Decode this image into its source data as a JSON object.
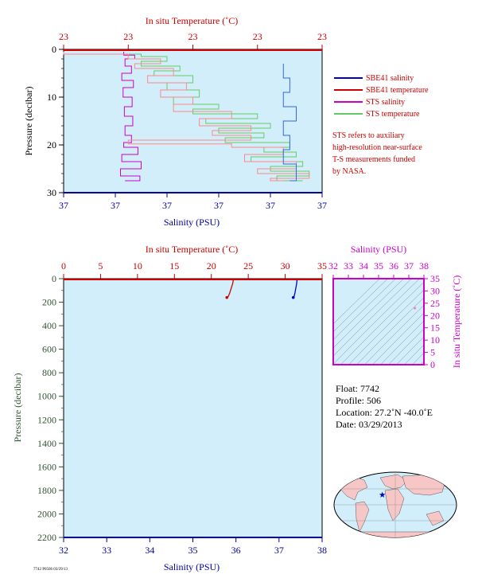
{
  "chart_data": [
    {
      "type": "line",
      "title": "",
      "top_axis": {
        "label": "In situ Temperature (˚C)",
        "tick_labels": [
          "23",
          "23",
          "23",
          "23",
          "23"
        ],
        "range": [
          0,
          4
        ]
      },
      "bottom_axis": {
        "label": "Salinity (PSU)",
        "tick_labels": [
          "37",
          "37",
          "37",
          "37",
          "37",
          "37"
        ],
        "range": [
          0,
          5
        ]
      },
      "ylabel": "Pressure (decibar)",
      "y_tick_labels": [
        "0",
        "10",
        "20",
        "30"
      ],
      "ylim": [
        30,
        0
      ],
      "legend": {
        "placement": "right",
        "entries": [
          {
            "name": "SBE41 salinity",
            "color": "#0000cc"
          },
          {
            "name": "SBE41 temperature",
            "color": "#cc0000"
          },
          {
            "name": "STS salinity",
            "color": "#cc00cc"
          },
          {
            "name": "STS temperature",
            "color": "#66cc66"
          }
        ]
      },
      "note": [
        "STS refers to auxiliary",
        "high-resolution near-surface",
        "T-S measurements funded",
        "by NASA."
      ],
      "series": [
        {
          "name": "STS salinity",
          "color": "#cc00cc",
          "points": [
            [
              0.93,
              0.5
            ],
            [
              1.1,
              1.2
            ],
            [
              0.95,
              2.0
            ],
            [
              1.05,
              3.5
            ],
            [
              0.9,
              5
            ],
            [
              1.08,
              6.5
            ],
            [
              0.92,
              8
            ],
            [
              1.06,
              10
            ],
            [
              0.94,
              12
            ],
            [
              1.07,
              14
            ],
            [
              0.95,
              16
            ],
            [
              1.05,
              18
            ],
            [
              0.93,
              19.5
            ],
            [
              1.15,
              20.5
            ],
            [
              0.9,
              22
            ],
            [
              1.2,
              23.5
            ],
            [
              0.88,
              25
            ],
            [
              1.18,
              26.5
            ],
            [
              0.95,
              27.5
            ]
          ]
        },
        {
          "name": "STS temperature",
          "color": "#66cc66",
          "points": [
            [
              0.0,
              0.5
            ],
            [
              1.2,
              1.0
            ],
            [
              1.6,
              1.5
            ],
            [
              1.2,
              2.5
            ],
            [
              1.8,
              3.5
            ],
            [
              1.4,
              4.5
            ],
            [
              2.0,
              5.5
            ],
            [
              1.6,
              7.0
            ],
            [
              2.1,
              8.5
            ],
            [
              1.7,
              10.0
            ],
            [
              2.4,
              11.5
            ],
            [
              2.0,
              12.5
            ],
            [
              3.0,
              13.5
            ],
            [
              2.2,
              14.5
            ],
            [
              3.2,
              15.5
            ],
            [
              2.4,
              16.5
            ],
            [
              3.1,
              17.5
            ],
            [
              2.5,
              18.5
            ],
            [
              3.5,
              19.5
            ],
            [
              3.1,
              20.5
            ],
            [
              3.6,
              21.5
            ],
            [
              2.9,
              22.5
            ],
            [
              3.7,
              23.5
            ],
            [
              3.2,
              24.5
            ],
            [
              3.8,
              25.5
            ],
            [
              3.3,
              26.5
            ],
            [
              3.7,
              27.5
            ]
          ]
        },
        {
          "name": "SBE41 temperature",
          "color": "#ff8888",
          "points": [
            [
              0.0,
              0.5
            ],
            [
              1.0,
              1.0
            ],
            [
              1.5,
              2.0
            ],
            [
              1.1,
              3.0
            ],
            [
              1.7,
              4.0
            ],
            [
              1.3,
              5.5
            ],
            [
              1.9,
              7.0
            ],
            [
              1.5,
              8.5
            ],
            [
              2.0,
              10.0
            ],
            [
              1.7,
              11.5
            ],
            [
              2.6,
              13.0
            ],
            [
              2.1,
              14.5
            ],
            [
              2.9,
              16.0
            ],
            [
              2.3,
              17.0
            ],
            [
              2.9,
              18.0
            ],
            [
              1.0,
              19.0
            ],
            [
              2.6,
              19.8
            ],
            [
              3.4,
              20.5
            ],
            [
              2.8,
              22.0
            ],
            [
              3.6,
              23.5
            ],
            [
              3.0,
              25.0
            ],
            [
              3.8,
              26.0
            ],
            [
              3.2,
              27.0
            ],
            [
              3.4,
              27.5
            ]
          ]
        },
        {
          "name": "SBE41 salinity",
          "color": "#3366ee",
          "points": [
            [
              3.4,
              3.0
            ],
            [
              3.5,
              6.0
            ],
            [
              3.4,
              9.0
            ],
            [
              3.6,
              12.0
            ],
            [
              3.4,
              15.0
            ],
            [
              3.5,
              18.0
            ],
            [
              3.4,
              21.0
            ],
            [
              3.6,
              24.0
            ],
            [
              3.5,
              27.5
            ]
          ]
        }
      ]
    },
    {
      "type": "line",
      "title": "",
      "top_axis": {
        "label": "In situ Temperature (˚C)",
        "tick_labels": [
          "0",
          "5",
          "10",
          "15",
          "20",
          "25",
          "30",
          "35"
        ],
        "range": [
          0,
          35
        ]
      },
      "bottom_axis": {
        "label": "Salinity (PSU)",
        "tick_labels": [
          "32",
          "33",
          "34",
          "35",
          "36",
          "37",
          "38"
        ],
        "range": [
          32,
          38
        ]
      },
      "ylabel": "Pressure (decibar)",
      "y_tick_labels": [
        "0",
        "200",
        "400",
        "600",
        "800",
        "1000",
        "1200",
        "1400",
        "1600",
        "1800",
        "2000",
        "2200"
      ],
      "ylim": [
        2200,
        0
      ],
      "series": [
        {
          "name": "SBE41 temperature",
          "color": "#cc0000",
          "points": [
            [
              23.0,
              0
            ],
            [
              22.9,
              40
            ],
            [
              22.7,
              80
            ],
            [
              22.5,
              120
            ],
            [
              22.3,
              150
            ],
            [
              22.1,
              160
            ]
          ]
        },
        {
          "name": "SBE41 salinity",
          "color": "#0000cc",
          "points": [
            [
              37.42,
              0
            ],
            [
              37.41,
              40
            ],
            [
              37.39,
              80
            ],
            [
              37.37,
              120
            ],
            [
              37.35,
              150
            ],
            [
              37.33,
              160
            ]
          ]
        }
      ]
    },
    {
      "type": "scatter",
      "title": "",
      "top_axis": {
        "label": "Salinity (PSU)",
        "tick_labels": [
          "32",
          "33",
          "34",
          "35",
          "36",
          "37",
          "38"
        ],
        "range": [
          32,
          38
        ]
      },
      "right_axis": {
        "label": "In situ Temperature (˚C)",
        "tick_labels": [
          "0",
          "5",
          "10",
          "15",
          "20",
          "25",
          "30",
          "35"
        ],
        "range": [
          0,
          35
        ]
      },
      "grid": "density contours",
      "points": [
        [
          37.4,
          23.0
        ]
      ]
    }
  ],
  "float_info": {
    "float_line": "Float:  7742",
    "profile_line": "Profile:  506",
    "location_line": "Location:  27.2˚N  -40.0˚E",
    "date_line": "Date:  03/29/2013"
  },
  "map": {
    "marker_lat": 27.2,
    "marker_lon": -40.0,
    "marker_color": "#0000cc"
  },
  "colors": {
    "plot_background": "#d2eefa",
    "temperature": "#cc0000",
    "salinity": "#000099",
    "ts_axis": "#cc00cc",
    "pressure_label": "#335533"
  },
  "footer_text": "7742 P0506 03/29/13"
}
